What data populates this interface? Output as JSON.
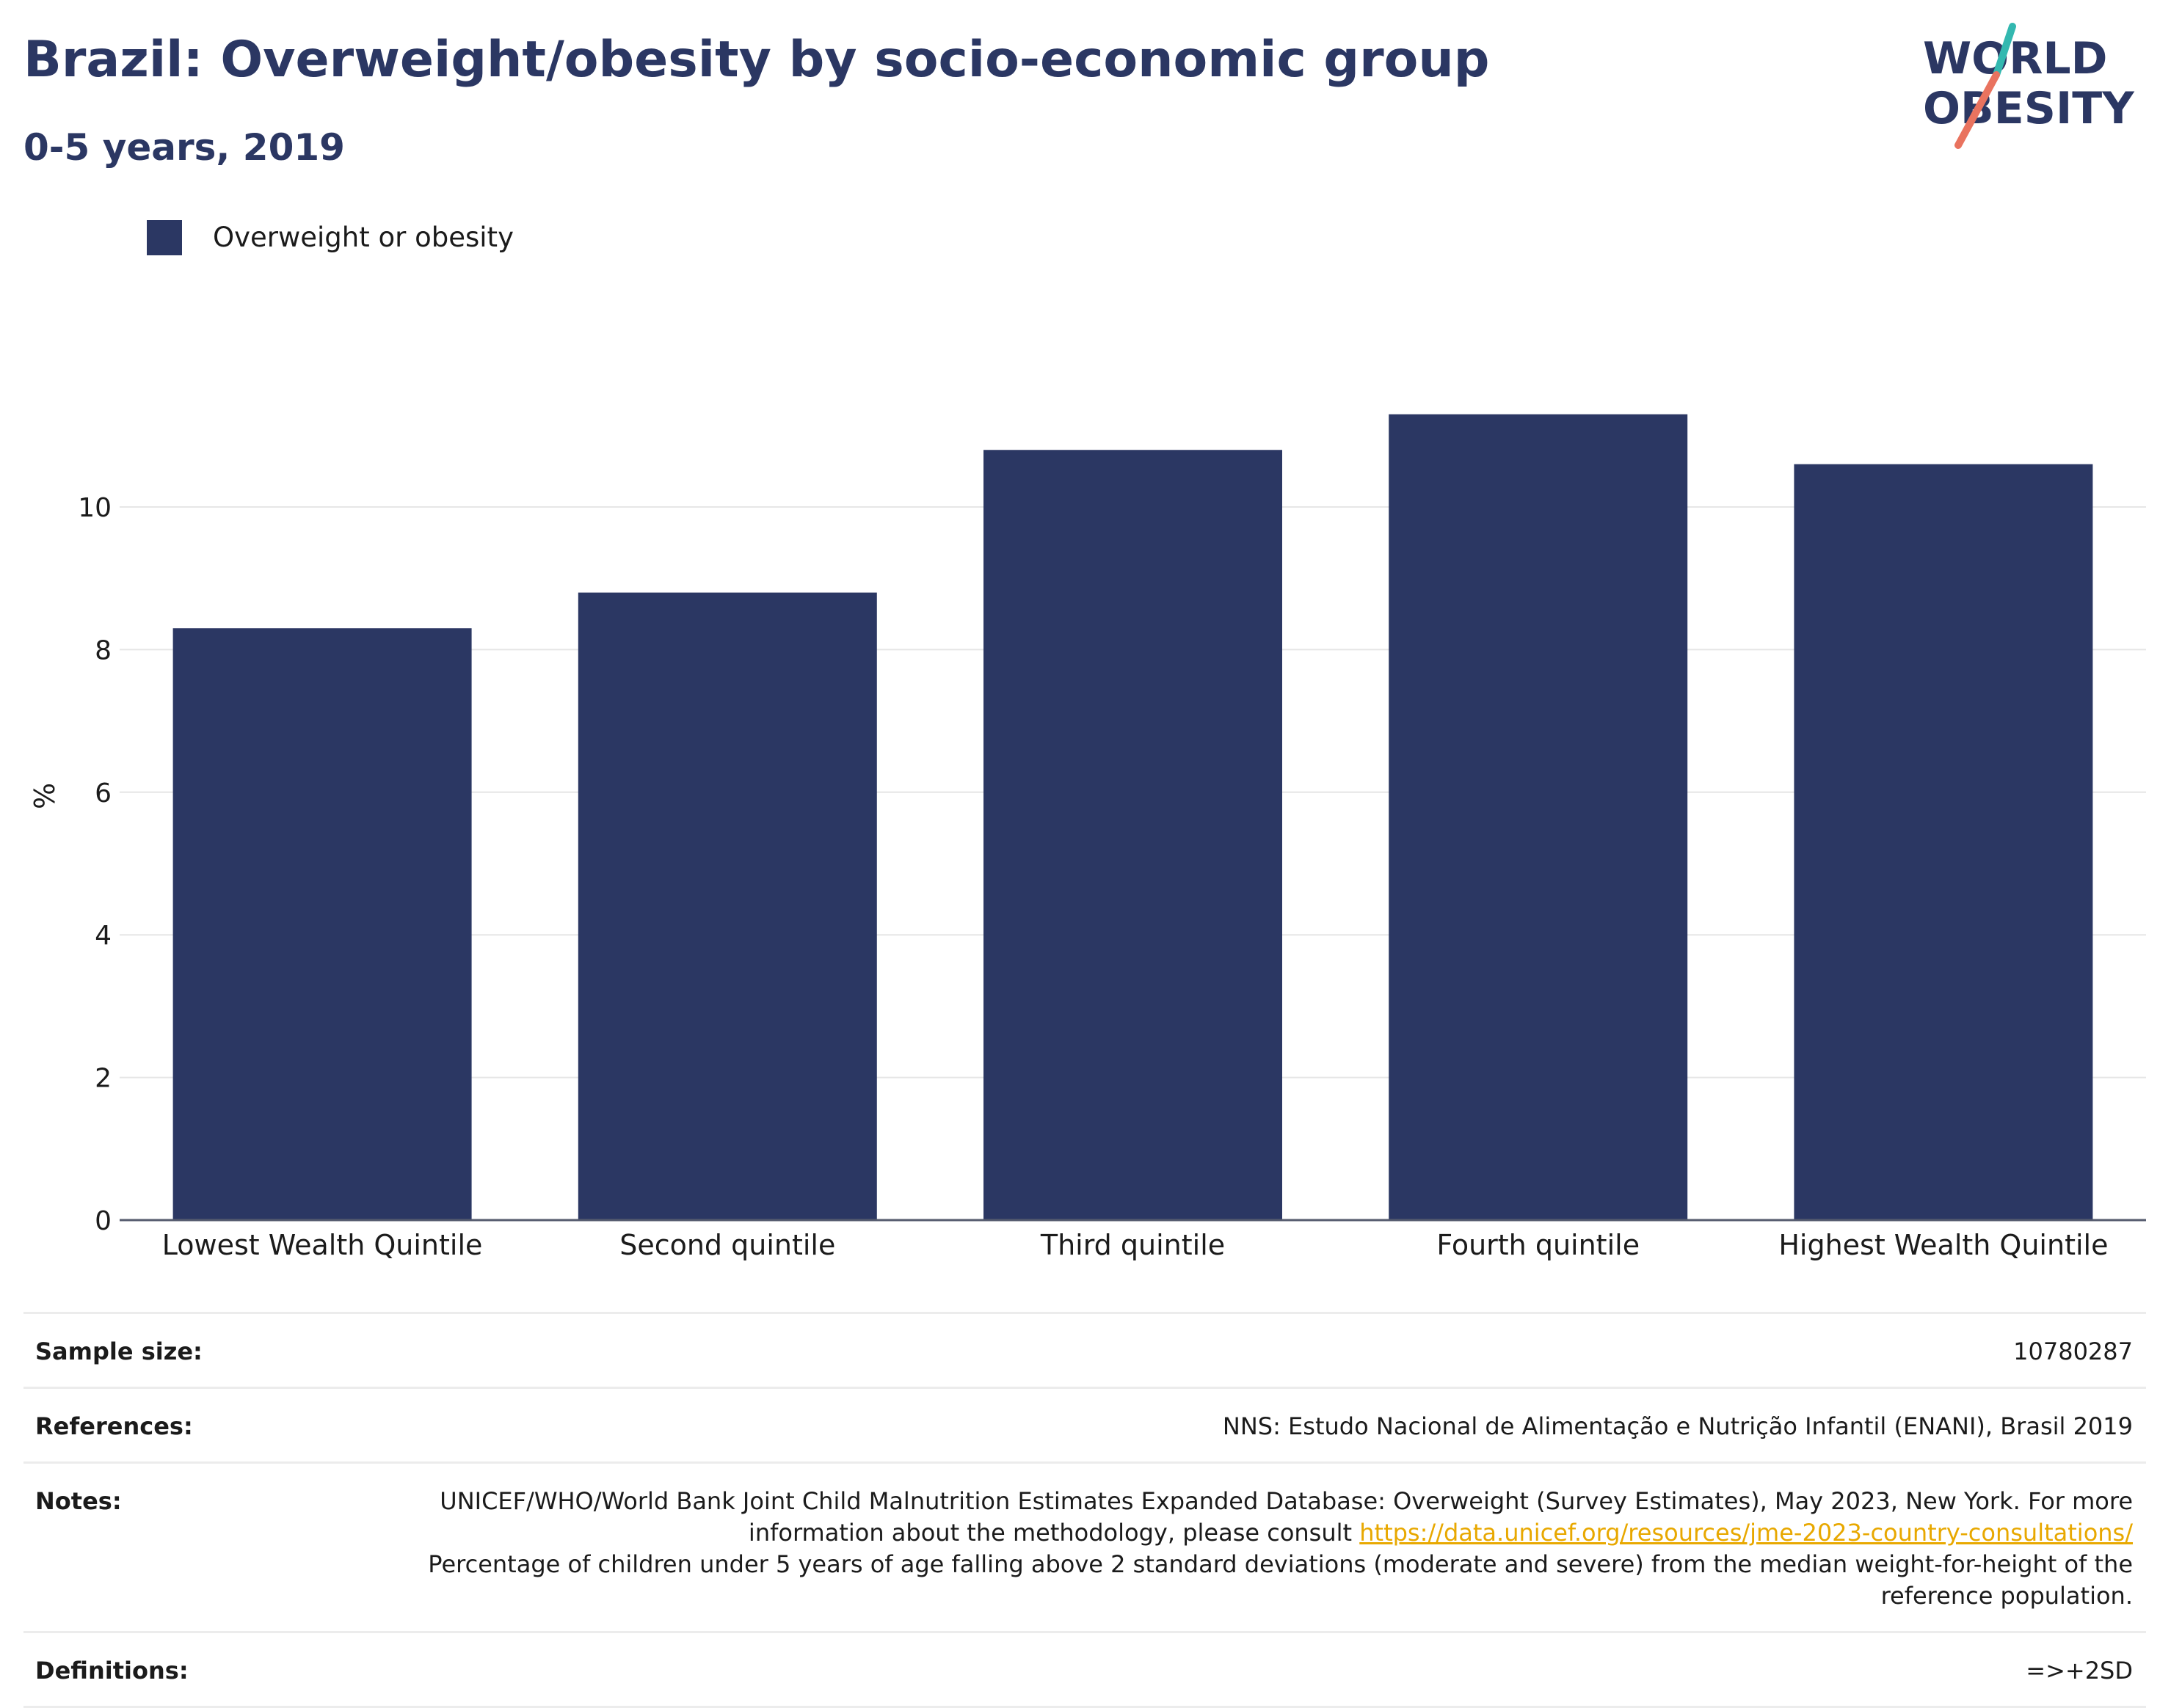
{
  "header": {
    "title": "Brazil: Overweight/obesity by socio-economic group",
    "subtitle": "0-5 years, 2019"
  },
  "logo": {
    "line1": "WORLD",
    "line2": "OBESITY",
    "accent_teal": "#33b8b0",
    "accent_coral": "#e9735f"
  },
  "legend": {
    "label": "Overweight or obesity",
    "color": "#2b3763"
  },
  "chart_data": {
    "type": "bar",
    "categories": [
      "Lowest Wealth Quintile",
      "Second quintile",
      "Third quintile",
      "Fourth quintile",
      "Highest Wealth Quintile"
    ],
    "series": [
      {
        "name": "Overweight or obesity",
        "values": [
          8.3,
          8.8,
          10.8,
          11.3,
          10.6
        ],
        "color": "#2b3763"
      }
    ],
    "ylabel": "%",
    "ylim": [
      0,
      12
    ],
    "yticks": [
      0,
      2,
      4,
      6,
      8,
      10
    ],
    "grid": true,
    "legend_position": "top-left"
  },
  "info": {
    "sample_size_label": "Sample size:",
    "sample_size_value": "10780287",
    "references_label": "References:",
    "references_value": "NNS: Estudo Nacional de Alimentação e Nutrição Infantil (ENANI), Brasil 2019",
    "notes_label": "Notes:",
    "notes_text_1": "UNICEF/WHO/World Bank Joint Child Malnutrition Estimates Expanded Database: Overweight (Survey Estimates), May 2023, New York. For more information about the methodology, please consult ",
    "notes_link": "https://data.unicef.org/resources/jme-2023-country-consultations/",
    "notes_text_2": "Percentage of children under 5 years of age falling above 2 standard deviations (moderate and severe) from the median weight-for-height of the reference population.",
    "definitions_label": "Definitions:",
    "definitions_value": "=>+2SD"
  }
}
